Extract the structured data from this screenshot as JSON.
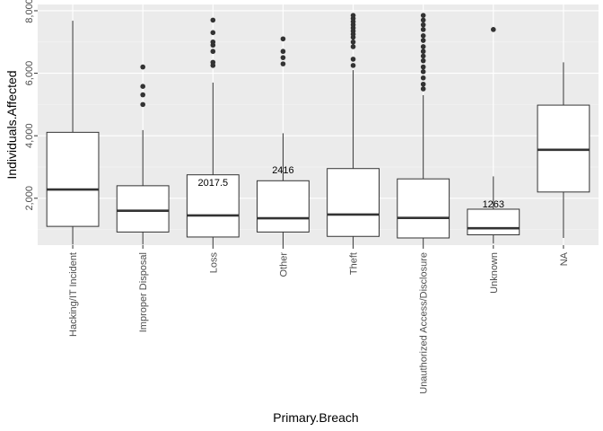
{
  "chart_data": {
    "type": "boxplot",
    "xlabel": "Primary.Breach",
    "ylabel": "Individuals.Affected",
    "ylim": [
      500,
      8200
    ],
    "y_ticks": [
      2000,
      4000,
      6000,
      8000
    ],
    "y_tick_labels": [
      "2,000",
      "4,000",
      "6,000",
      "8,000"
    ],
    "grid": true,
    "categories": [
      "Hacking/IT Incident",
      "Improper Disposal",
      "Loss",
      "Other",
      "Theft",
      "Unauthorized Access/Disclosure",
      "Unknown",
      "NA"
    ],
    "boxes": [
      {
        "category": "Hacking/IT Incident",
        "lower_whisker": 520,
        "q1": 1100,
        "median": 2280,
        "q3": 4110,
        "upper_whisker": 7680,
        "outliers": []
      },
      {
        "category": "Improper Disposal",
        "lower_whisker": 520,
        "q1": 920,
        "median": 1600,
        "q3": 2400,
        "upper_whisker": 4180,
        "outliers": [
          5000,
          5310,
          5580,
          6200
        ]
      },
      {
        "category": "Loss",
        "lower_whisker": 500,
        "q1": 760,
        "median": 1450,
        "q3": 2750,
        "upper_whisker": 5700,
        "outliers": [
          6250,
          6350,
          6700,
          6900,
          7000,
          7300,
          7700
        ]
      },
      {
        "category": "Other",
        "lower_whisker": 500,
        "q1": 920,
        "median": 1360,
        "q3": 2560,
        "upper_whisker": 4080,
        "outliers": [
          6300,
          6500,
          6700,
          7100
        ]
      },
      {
        "category": "Theft",
        "lower_whisker": 500,
        "q1": 780,
        "median": 1480,
        "q3": 2950,
        "upper_whisker": 6100,
        "outliers": [
          6250,
          6450,
          6850,
          7000,
          7150,
          7250,
          7350,
          7450,
          7550,
          7650,
          7750,
          7850
        ]
      },
      {
        "category": "Unauthorized Access/Disclosure",
        "lower_whisker": 500,
        "q1": 730,
        "median": 1370,
        "q3": 2620,
        "upper_whisker": 5300,
        "outliers": [
          5500,
          5650,
          5850,
          6050,
          6200,
          6400,
          6550,
          6700,
          6850,
          7050,
          7200,
          7400,
          7550,
          7700,
          7850
        ]
      },
      {
        "category": "Unknown",
        "lower_whisker": 550,
        "q1": 830,
        "median": 1040,
        "q3": 1650,
        "upper_whisker": 2700,
        "outliers": [
          7400
        ]
      },
      {
        "category": "NA",
        "lower_whisker": 730,
        "q1": 2200,
        "median": 3550,
        "q3": 4980,
        "upper_whisker": 6350,
        "outliers": []
      }
    ],
    "annotations": [
      {
        "category": "Loss",
        "text": "2017.5",
        "y": 2400
      },
      {
        "category": "Other",
        "text": "2416",
        "y": 2800
      },
      {
        "category": "Unknown",
        "text": "1263",
        "y": 1700
      }
    ]
  }
}
